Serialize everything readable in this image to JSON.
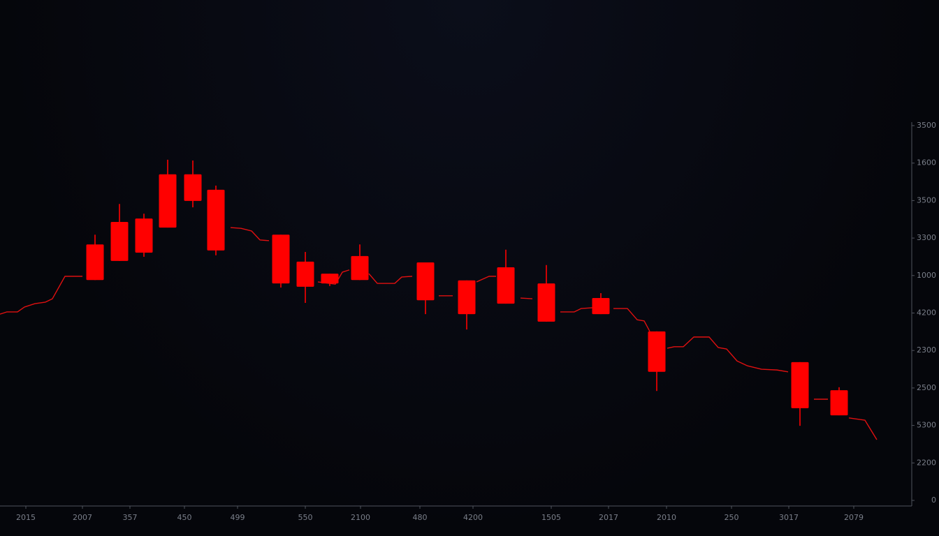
{
  "chart_data": {
    "type": "candlestick",
    "xlim": [
      0,
      1344
    ],
    "ylim": [
      0,
      10
    ],
    "xticks": [
      {
        "value": 37,
        "label": "2015"
      },
      {
        "value": 118,
        "label": "2007"
      },
      {
        "value": 186,
        "label": "357"
      },
      {
        "value": 264,
        "label": "450"
      },
      {
        "value": 340,
        "label": "499"
      },
      {
        "value": 437,
        "label": "550"
      },
      {
        "value": 516,
        "label": "2100"
      },
      {
        "value": 601,
        "label": "480"
      },
      {
        "value": 677,
        "label": "4200"
      },
      {
        "value": 789,
        "label": "1505"
      },
      {
        "value": 871,
        "label": "2017"
      },
      {
        "value": 954,
        "label": "2010"
      },
      {
        "value": 1047,
        "label": "250"
      },
      {
        "value": 1129,
        "label": "3017"
      },
      {
        "value": 1222,
        "label": "2079"
      }
    ],
    "yticks": [
      0,
      {
        "value": 1,
        "label": "2200"
      },
      {
        "value": 2,
        "label": "5300"
      },
      {
        "value": 3,
        "label": "2500"
      },
      {
        "value": 4,
        "label": "2300"
      },
      {
        "value": 5,
        "label": "4200"
      },
      {
        "value": 6,
        "label": "1000"
      },
      {
        "value": 7,
        "label": "3300"
      },
      {
        "value": 8,
        "label": "3500"
      },
      {
        "value": 9,
        "label": "1600"
      },
      {
        "value": 10,
        "label": "3500"
      }
    ],
    "series": [
      {
        "type": "candlestick",
        "color": "#ff0000",
        "x": [
          136,
          171,
          206,
          240,
          276,
          309,
          402,
          437,
          472,
          515,
          609,
          668,
          724,
          782,
          860,
          940,
          1145,
          1201
        ],
        "open": [
          6.83,
          7.43,
          7.52,
          8.7,
          8.7,
          8.29,
          7.09,
          6.37,
          6.05,
          6.52,
          6.35,
          5.87,
          6.22,
          5.79,
          5.4,
          4.51,
          3.69,
          2.94
        ],
        "high": [
          7.09,
          7.91,
          7.65,
          9.09,
          9.07,
          8.4,
          7.09,
          6.63,
          6.05,
          6.83,
          6.35,
          5.87,
          6.69,
          6.28,
          5.53,
          4.51,
          3.69,
          3.02
        ],
        "low": [
          5.88,
          6.39,
          6.5,
          7.28,
          7.82,
          6.54,
          5.68,
          5.27,
          5.72,
          5.88,
          4.97,
          4.56,
          5.25,
          4.77,
          4.97,
          2.92,
          1.99,
          2.27
        ],
        "close": [
          5.88,
          6.39,
          6.61,
          7.28,
          7.99,
          6.67,
          5.79,
          5.7,
          5.79,
          5.88,
          5.34,
          4.97,
          5.25,
          4.77,
          4.97,
          3.43,
          2.46,
          2.27
        ]
      },
      {
        "type": "line",
        "color": "#e01010",
        "x": [
          0,
          10,
          25,
          35,
          50,
          65,
          75,
          93,
          118,
          null,
          330,
          345,
          360,
          372,
          385,
          null,
          455,
          480,
          490,
          500,
          null,
          528,
          540,
          565,
          575,
          590,
          null,
          628,
          648,
          null,
          682,
          700,
          710,
          null,
          745,
          762,
          null,
          802,
          822,
          832,
          848,
          null,
          878,
          898,
          912,
          922,
          930,
          null,
          955,
          965,
          978,
          993,
          1015,
          1028,
          1040,
          1055,
          1070,
          1090,
          1112,
          1128,
          null,
          1165,
          1185,
          null,
          1215,
          1238,
          1255
        ],
        "values": [
          4.97,
          5.03,
          5.03,
          5.16,
          5.25,
          5.29,
          5.38,
          5.98,
          5.98,
          null,
          7.28,
          7.26,
          7.19,
          6.95,
          6.93,
          null,
          5.83,
          5.77,
          6.09,
          6.15,
          null,
          6.05,
          5.79,
          5.79,
          5.96,
          5.98,
          null,
          5.46,
          5.46,
          null,
          5.83,
          5.98,
          5.98,
          null,
          5.4,
          5.38,
          null,
          5.03,
          5.03,
          5.12,
          5.14,
          null,
          5.12,
          5.12,
          4.82,
          4.79,
          4.51,
          null,
          4.06,
          4.1,
          4.1,
          4.36,
          4.36,
          4.08,
          4.04,
          3.72,
          3.59,
          3.5,
          3.48,
          3.43,
          null,
          2.7,
          2.7,
          null,
          2.2,
          2.14,
          1.62
        ]
      }
    ]
  }
}
